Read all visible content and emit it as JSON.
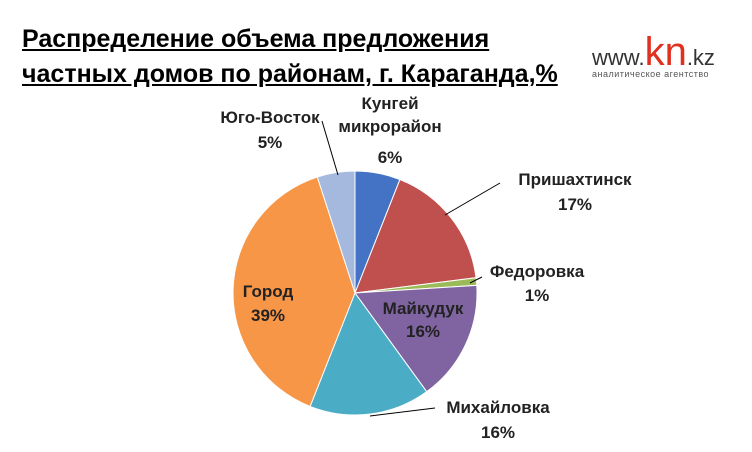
{
  "chart_data": {
    "type": "pie",
    "title": "Распределение объема предложения частных домов по районам, г. Караганда,%",
    "logo": {
      "prefix": "www.",
      "brand": "kn",
      "suffix": ".kz",
      "tagline": "аналитическое агентство"
    },
    "categories": [
      "Кунгей микрорайон",
      "Пришахтинск",
      "Федоровка",
      "Майкудук",
      "Михайловка",
      "Город",
      "Юго-Восток"
    ],
    "values": [
      6,
      17,
      1,
      16,
      16,
      39,
      5
    ],
    "value_labels": [
      "6%",
      "17%",
      "1%",
      "16%",
      "16%",
      "39%",
      "5%"
    ],
    "colors": [
      "#4472c4",
      "#c0504d",
      "#9bbb59",
      "#8064a2",
      "#4bacc6",
      "#f79646",
      "#a5b9df"
    ]
  }
}
